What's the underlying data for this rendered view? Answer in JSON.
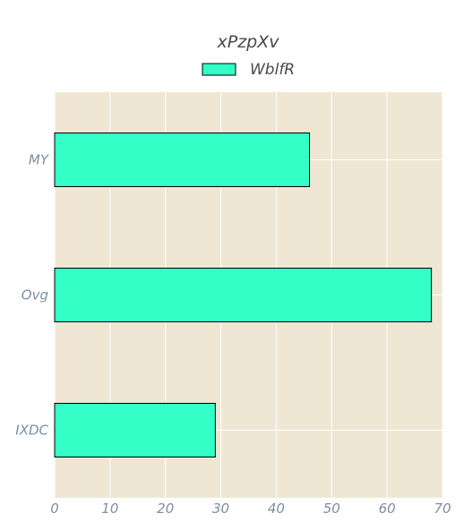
{
  "chart_data": {
    "type": "bar",
    "orientation": "horizontal",
    "title": "xPzpXv",
    "xlabel": "",
    "ylabel": "",
    "categories": [
      "MY",
      "Ovg",
      "IXDC"
    ],
    "series": [
      {
        "name": "WblfR",
        "values": [
          46,
          68,
          29
        ],
        "color": "#33ffc6"
      }
    ],
    "xlim": [
      0,
      70
    ],
    "xticks": [
      0,
      10,
      20,
      30,
      40,
      50,
      60,
      70
    ],
    "grid": true,
    "legend_position": "top-center",
    "colors": {
      "plot_background": "#efe7d4",
      "grid": "#ffffff",
      "bar_edge": "#000000",
      "tick_label": "#7d8fa0",
      "title": "#4a4a4a"
    }
  }
}
